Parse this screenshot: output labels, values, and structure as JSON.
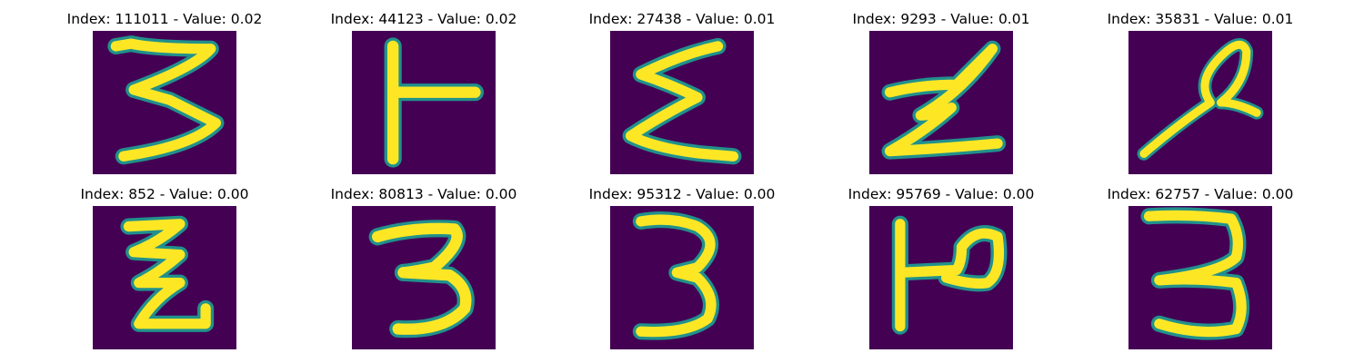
{
  "figure": {
    "colors": {
      "background": "#440154",
      "stroke_edge": "#21918c",
      "stroke_core": "#fde725",
      "title_text": "#000000"
    },
    "panels": [
      {
        "title": "Index: 111011 - Value: 0.02",
        "glyph": "three-like"
      },
      {
        "title": "Index: 44123 - Value: 0.02",
        "glyph": "sideways-t"
      },
      {
        "title": "Index: 27438 - Value: 0.01",
        "glyph": "sigma-like"
      },
      {
        "title": "Index: 9293 - Value: 0.01",
        "glyph": "z-like"
      },
      {
        "title": "Index: 35831 - Value: 0.01",
        "glyph": "loop-scribble"
      },
      {
        "title": "Index: 852 - Value: 0.00",
        "glyph": "z-like"
      },
      {
        "title": "Index: 80813 - Value: 0.00",
        "glyph": "three"
      },
      {
        "title": "Index: 95312 - Value: 0.00",
        "glyph": "three"
      },
      {
        "title": "Index: 95769 - Value: 0.00",
        "glyph": "p-like"
      },
      {
        "title": "Index: 62757 - Value: 0.00",
        "glyph": "three"
      }
    ]
  }
}
